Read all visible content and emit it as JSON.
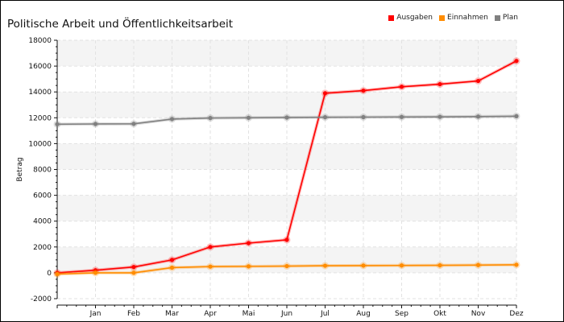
{
  "chart_data": {
    "type": "line",
    "title": "Politische Arbeit und Öffentlichkeitsarbeit",
    "ylabel": "Betrag",
    "xlabel": "",
    "categories": [
      "",
      "Jan",
      "Feb",
      "Mar",
      "Apr",
      "Mai",
      "Jun",
      "Jul",
      "Aug",
      "Sep",
      "Okt",
      "Nov",
      "Dez"
    ],
    "ylim": [
      -2000,
      18000
    ],
    "yticks": [
      -2000,
      0,
      2000,
      4000,
      6000,
      8000,
      10000,
      12000,
      14000,
      16000,
      18000
    ],
    "grid": true,
    "legend_position": "top-right",
    "series": [
      {
        "name": "Ausgaben",
        "color": "#ff0000",
        "values": [
          0,
          200,
          450,
          1000,
          2000,
          2300,
          2550,
          13900,
          14100,
          14400,
          14600,
          14850,
          16400
        ]
      },
      {
        "name": "Einnahmen",
        "color": "#ff8c00",
        "values": [
          -100,
          0,
          0,
          400,
          480,
          500,
          520,
          550,
          560,
          570,
          580,
          600,
          620
        ]
      },
      {
        "name": "Plan",
        "color": "#808080",
        "values": [
          11500,
          11520,
          11530,
          11900,
          11980,
          12000,
          12020,
          12040,
          12050,
          12060,
          12070,
          12090,
          12120
        ]
      }
    ]
  }
}
